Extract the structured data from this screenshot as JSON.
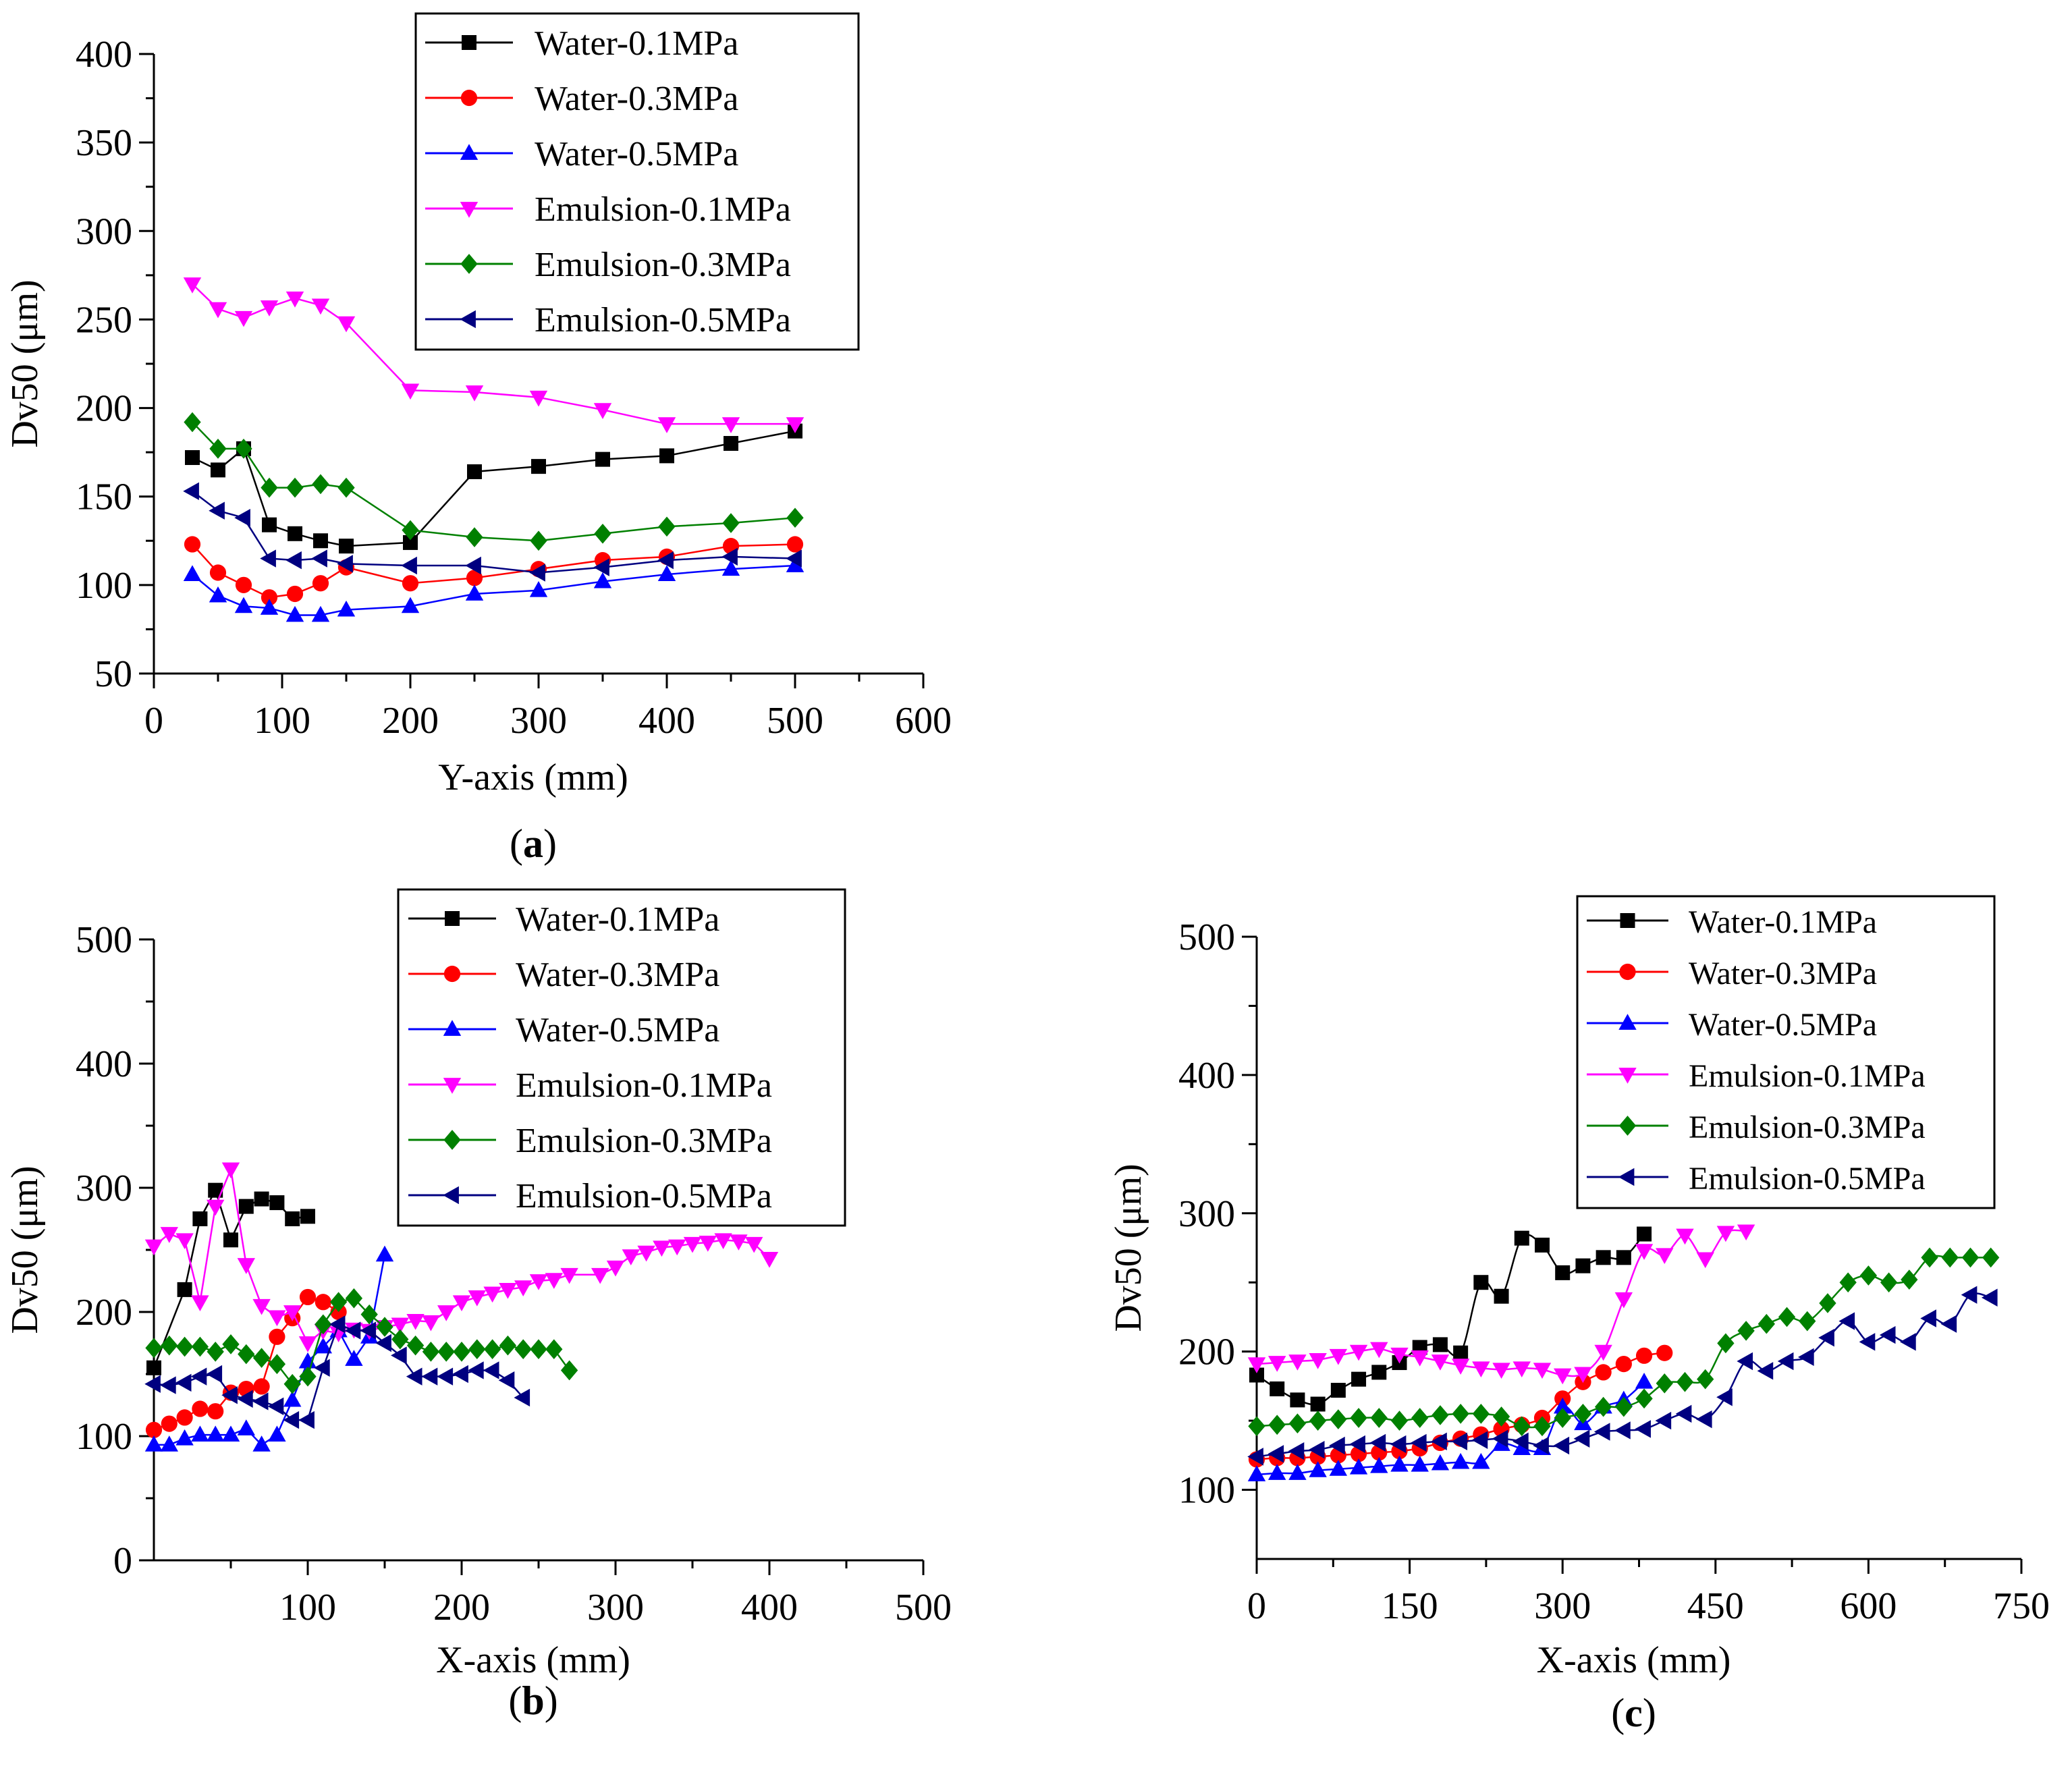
{
  "chart_data": [
    {
      "panel_label": "(a)",
      "type": "line",
      "xlabel": "Y-axis (mm)",
      "ylabel": "Dv50 (μm)",
      "xlim": [
        0,
        600
      ],
      "ylim": [
        50,
        400
      ],
      "xticks": [
        "0",
        "100",
        "200",
        "300",
        "400",
        "500",
        "600"
      ],
      "yticks": [
        "50",
        "100",
        "150",
        "200",
        "250",
        "300",
        "350",
        "400"
      ],
      "legend_position": "top-right",
      "series": [
        {
          "name": "Water-0.1MPa",
          "color": "#000000",
          "marker": "square",
          "smooth": false,
          "x": [
            30,
            50,
            70,
            90,
            110,
            130,
            150,
            200,
            250,
            300,
            350,
            400,
            450,
            500
          ],
          "y": [
            172,
            165,
            177,
            134,
            129,
            125,
            122,
            124,
            164,
            167,
            171,
            173,
            180,
            187
          ]
        },
        {
          "name": "Water-0.3MPa",
          "color": "#ff0000",
          "marker": "circle",
          "smooth": false,
          "x": [
            30,
            50,
            70,
            90,
            110,
            130,
            150,
            200,
            250,
            300,
            350,
            400,
            450,
            500
          ],
          "y": [
            123,
            107,
            100,
            93,
            95,
            101,
            110,
            101,
            104,
            109,
            114,
            116,
            122,
            123
          ]
        },
        {
          "name": "Water-0.5MPa",
          "color": "#0000ff",
          "marker": "triangle-up",
          "smooth": false,
          "x": [
            30,
            50,
            70,
            90,
            110,
            130,
            150,
            200,
            250,
            300,
            350,
            400,
            450,
            500
          ],
          "y": [
            106,
            94,
            88,
            87,
            83,
            83,
            86,
            88,
            95,
            97,
            102,
            106,
            109,
            111
          ]
        },
        {
          "name": "Emulsion-0.1MPa",
          "color": "#ff00ff",
          "marker": "triangle-down",
          "smooth": false,
          "x": [
            30,
            50,
            70,
            90,
            110,
            130,
            150,
            200,
            250,
            300,
            350,
            400,
            450,
            500
          ],
          "y": [
            270,
            256,
            251,
            257,
            262,
            258,
            248,
            210,
            209,
            206,
            199,
            191,
            191,
            191
          ]
        },
        {
          "name": "Emulsion-0.3MPa",
          "color": "#008000",
          "marker": "diamond",
          "smooth": false,
          "x": [
            30,
            50,
            70,
            90,
            110,
            130,
            150,
            200,
            250,
            300,
            350,
            400,
            450,
            500
          ],
          "y": [
            192,
            177,
            177,
            155,
            155,
            157,
            155,
            131,
            127,
            125,
            129,
            133,
            135,
            138
          ]
        },
        {
          "name": "Emulsion-0.5MPa",
          "color": "#000080",
          "marker": "triangle-left",
          "smooth": false,
          "x": [
            30,
            50,
            70,
            90,
            110,
            130,
            150,
            200,
            250,
            300,
            350,
            400,
            450,
            500
          ],
          "y": [
            153,
            142,
            138,
            115,
            114,
            115,
            112,
            111,
            111,
            107,
            110,
            114,
            116,
            115
          ]
        }
      ]
    },
    {
      "panel_label": "(b)",
      "type": "line",
      "xlabel": "X-axis (mm)",
      "ylabel": "Dv50 (μm)",
      "xlim": [
        0,
        500
      ],
      "ylim": [
        0,
        500
      ],
      "xticks": [
        "100",
        "200",
        "300",
        "400",
        "500"
      ],
      "xtick_values": [
        100,
        200,
        300,
        400,
        500
      ],
      "yticks": [
        "0",
        "100",
        "200",
        "300",
        "400",
        "500"
      ],
      "legend_position": "top-right",
      "series": [
        {
          "name": "Water-0.1MPa",
          "color": "#000000",
          "marker": "square",
          "smooth": false,
          "x": [
            0,
            20,
            30,
            40,
            50,
            60,
            70,
            80,
            90,
            100
          ],
          "y": [
            155,
            218,
            275,
            298,
            258,
            285,
            291,
            288,
            275,
            277
          ]
        },
        {
          "name": "Water-0.3MPa",
          "color": "#ff0000",
          "marker": "circle",
          "smooth": false,
          "x": [
            0,
            10,
            20,
            30,
            40,
            50,
            60,
            70,
            80,
            90,
            100,
            110,
            120
          ],
          "y": [
            105,
            110,
            115,
            122,
            120,
            135,
            138,
            140,
            180,
            195,
            212,
            208,
            200
          ]
        },
        {
          "name": "Water-0.5MPa",
          "color": "#0000ff",
          "marker": "triangle-up",
          "smooth": false,
          "x": [
            0,
            10,
            20,
            30,
            40,
            50,
            60,
            70,
            80,
            90,
            100,
            110,
            120,
            130,
            140,
            150
          ],
          "y": [
            93,
            93,
            98,
            101,
            101,
            101,
            106,
            93,
            101,
            129,
            160,
            172,
            185,
            162,
            180,
            246
          ]
        },
        {
          "name": "Emulsion-0.1MPa",
          "color": "#ff00ff",
          "marker": "triangle-down",
          "smooth": false,
          "x": [
            0,
            10,
            20,
            30,
            40,
            50,
            60,
            70,
            80,
            90,
            100,
            110,
            120,
            130,
            140,
            150,
            160,
            170,
            180,
            190,
            200,
            210,
            220,
            230,
            240,
            250,
            260,
            270,
            290,
            300,
            310,
            320,
            330,
            340,
            350,
            360,
            370,
            380,
            390,
            400
          ],
          "y": [
            253,
            263,
            258,
            208,
            285,
            315,
            238,
            205,
            196,
            200,
            175,
            185,
            183,
            186,
            185,
            188,
            190,
            193,
            192,
            200,
            208,
            212,
            215,
            218,
            220,
            225,
            226,
            230,
            230,
            236,
            245,
            248,
            252,
            253,
            255,
            256,
            258,
            257,
            255,
            243
          ]
        },
        {
          "name": "Emulsion-0.3MPa",
          "color": "#008000",
          "marker": "diamond",
          "smooth": false,
          "x": [
            0,
            10,
            20,
            30,
            40,
            50,
            60,
            70,
            80,
            90,
            100,
            110,
            120,
            130,
            140,
            150,
            160,
            170,
            180,
            190,
            200,
            210,
            220,
            230,
            240,
            250,
            260,
            270
          ],
          "y": [
            171,
            173,
            172,
            172,
            168,
            174,
            166,
            163,
            158,
            142,
            148,
            190,
            208,
            211,
            198,
            188,
            178,
            173,
            168,
            168,
            168,
            170,
            170,
            173,
            170,
            170,
            170,
            153
          ]
        },
        {
          "name": "Emulsion-0.5MPa",
          "color": "#000080",
          "marker": "triangle-left",
          "smooth": false,
          "x": [
            0,
            10,
            20,
            30,
            40,
            50,
            60,
            70,
            80,
            90,
            100,
            110,
            120,
            130,
            140,
            150,
            160,
            170,
            180,
            190,
            200,
            210,
            220,
            230,
            240
          ],
          "y": [
            142,
            141,
            143,
            148,
            150,
            133,
            130,
            128,
            124,
            113,
            113,
            155,
            190,
            185,
            185,
            175,
            165,
            148,
            148,
            148,
            150,
            153,
            153,
            145,
            131
          ]
        }
      ]
    },
    {
      "panel_label": "(c)",
      "type": "line",
      "xlabel": "X-axis (mm)",
      "ylabel": "Dv50 (μm)",
      "xlim": [
        0,
        750
      ],
      "ylim": [
        50,
        500
      ],
      "xticks": [
        "0",
        "150",
        "300",
        "450",
        "600",
        "750"
      ],
      "xtick_values": [
        0,
        150,
        300,
        450,
        600,
        750
      ],
      "yticks": [
        "100",
        "200",
        "300",
        "400",
        "500"
      ],
      "ytick_values": [
        100,
        200,
        300,
        400,
        500
      ],
      "legend_position": "top-right",
      "series": [
        {
          "name": "Water-0.1MPa",
          "color": "#000000",
          "marker": "square",
          "smooth": true,
          "x": [
            0,
            20,
            40,
            60,
            80,
            100,
            120,
            140,
            160,
            180,
            200,
            220,
            240,
            260,
            280,
            300,
            320,
            340,
            360,
            380
          ],
          "y": [
            183,
            173,
            165,
            162,
            172,
            180,
            185,
            192,
            203,
            205,
            199,
            250,
            240,
            282,
            277,
            257,
            262,
            268,
            268,
            285
          ]
        },
        {
          "name": "Water-0.3MPa",
          "color": "#ff0000",
          "marker": "circle",
          "smooth": true,
          "x": [
            0,
            20,
            40,
            60,
            80,
            100,
            120,
            140,
            160,
            180,
            200,
            220,
            240,
            260,
            280,
            300,
            320,
            340,
            360,
            380,
            400
          ],
          "y": [
            122,
            123,
            123,
            124,
            125,
            126,
            127,
            128,
            130,
            134,
            137,
            140,
            144,
            147,
            152,
            166,
            178,
            185,
            191,
            197,
            199
          ]
        },
        {
          "name": "Water-0.5MPa",
          "color": "#0000ff",
          "marker": "triangle-up",
          "smooth": true,
          "x": [
            0,
            20,
            40,
            60,
            80,
            100,
            120,
            140,
            160,
            180,
            200,
            220,
            240,
            260,
            280,
            300,
            320,
            340,
            360,
            380
          ],
          "y": [
            111,
            112,
            112,
            114,
            115,
            116,
            117,
            118,
            118,
            119,
            120,
            120,
            133,
            130,
            130,
            160,
            148,
            160,
            165,
            178
          ]
        },
        {
          "name": "Emulsion-0.1MPa",
          "color": "#ff00ff",
          "marker": "triangle-down",
          "smooth": true,
          "x": [
            0,
            20,
            40,
            60,
            80,
            100,
            120,
            140,
            160,
            180,
            200,
            220,
            240,
            260,
            280,
            300,
            320,
            340,
            360,
            380,
            400,
            420,
            440,
            460,
            480
          ],
          "y": [
            191,
            192,
            193,
            194,
            197,
            200,
            202,
            198,
            196,
            193,
            190,
            188,
            187,
            188,
            187,
            183,
            184,
            200,
            238,
            273,
            270,
            284,
            267,
            286,
            287
          ]
        },
        {
          "name": "Emulsion-0.3MPa",
          "color": "#008000",
          "marker": "diamond",
          "smooth": true,
          "x": [
            0,
            20,
            40,
            60,
            80,
            100,
            120,
            140,
            160,
            180,
            200,
            220,
            240,
            260,
            280,
            300,
            320,
            340,
            360,
            380,
            400,
            420,
            440,
            460,
            480,
            500,
            520,
            540,
            560,
            580,
            600,
            620,
            640,
            660,
            680,
            700,
            720
          ],
          "y": [
            146,
            147,
            148,
            150,
            151,
            152,
            152,
            150,
            152,
            154,
            155,
            155,
            153,
            146,
            146,
            152,
            155,
            160,
            160,
            166,
            177,
            178,
            180,
            206,
            215,
            220,
            225,
            222,
            235,
            250,
            255,
            250,
            252,
            268,
            268,
            268,
            268
          ]
        },
        {
          "name": "Emulsion-0.5MPa",
          "color": "#000080",
          "marker": "triangle-left",
          "smooth": true,
          "x": [
            0,
            20,
            40,
            60,
            80,
            100,
            120,
            140,
            160,
            180,
            200,
            220,
            240,
            260,
            280,
            300,
            320,
            340,
            360,
            380,
            400,
            420,
            440,
            460,
            480,
            500,
            520,
            540,
            560,
            580,
            600,
            620,
            640,
            660,
            680,
            700,
            720
          ],
          "y": [
            124,
            126,
            128,
            129,
            132,
            133,
            134,
            133,
            134,
            135,
            135,
            136,
            137,
            135,
            132,
            132,
            137,
            142,
            143,
            144,
            150,
            155,
            151,
            167,
            193,
            186,
            193,
            196,
            210,
            222,
            207,
            212,
            207,
            224,
            220,
            241,
            239
          ]
        }
      ]
    }
  ]
}
